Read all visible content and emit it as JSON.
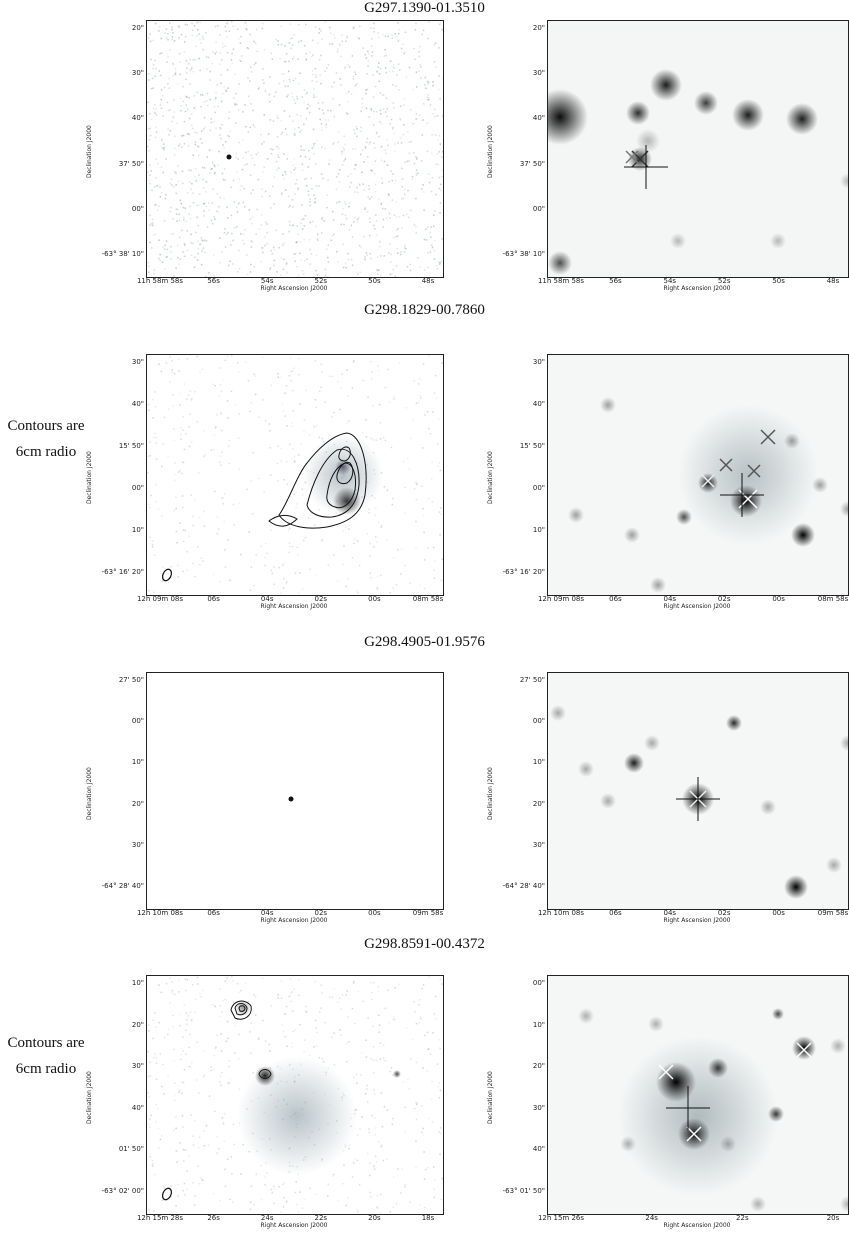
{
  "note": {
    "line1": "Contours are",
    "line2": "6cm radio"
  },
  "axis": {
    "x": "Right Ascension J2000",
    "y": "Declination J2000"
  },
  "sources": [
    {
      "title": "G297.1390-01.3510",
      "has_note": false,
      "xticks": [
        "11h 58m 58s",
        "56s",
        "54s",
        "52s",
        "50s",
        "48s"
      ],
      "yticks": [
        "20\"",
        "30\"",
        "40\"",
        "37' 50\"",
        "00\"",
        "-63° 38' 10\""
      ]
    },
    {
      "title": "G298.1829-00.7860",
      "has_note": true,
      "xticks": [
        "12h 09m 08s",
        "06s",
        "04s",
        "02s",
        "00s",
        "08m 58s"
      ],
      "yticks": [
        "30\"",
        "40\"",
        "15' 50\"",
        "00\"",
        "10\"",
        "-63° 16' 20\""
      ]
    },
    {
      "title": "G298.4905-01.9576",
      "has_note": false,
      "xticks": [
        "12h 10m 08s",
        "06s",
        "04s",
        "02s",
        "00s",
        "09m 58s"
      ],
      "yticks": [
        "27' 50\"",
        "00\"",
        "10\"",
        "20\"",
        "30\"",
        "-64° 28' 40\""
      ]
    },
    {
      "title": "G298.8591-00.4372",
      "has_note": true,
      "xticks": [
        "12h 15m 28s",
        "26s",
        "24s",
        "22s",
        "20s",
        "18s"
      ],
      "yticks": [
        "10\"",
        "20\"",
        "30\"",
        "40\"",
        "01' 50\"",
        "-63° 02' 00\""
      ]
    }
  ],
  "right_panels": [
    {
      "xticks": [
        "11h 58m 58s",
        "56s",
        "54s",
        "52s",
        "50s",
        "48s"
      ],
      "yticks": [
        "20\"",
        "30\"",
        "40\"",
        "37' 50\"",
        "00\"",
        "-63° 38' 10\""
      ]
    },
    {
      "xticks": [
        "12h 09m 08s",
        "06s",
        "04s",
        "02s",
        "00s",
        "08m 58s"
      ],
      "yticks": [
        "30\"",
        "40\"",
        "15' 50\"",
        "00\"",
        "10\"",
        "-63° 16' 20\""
      ]
    },
    {
      "xticks": [
        "12h 10m 08s",
        "06s",
        "04s",
        "02s",
        "00s",
        "09m 58s"
      ],
      "yticks": [
        "27' 50\"",
        "00\"",
        "10\"",
        "20\"",
        "30\"",
        "-64° 28' 40\""
      ]
    },
    {
      "xticks": [
        "12h 15m 26s",
        "24s",
        "22s",
        "20s"
      ],
      "yticks": [
        "00\"",
        "10\"",
        "20\"",
        "30\"",
        "40\"",
        "-63° 01' 50\""
      ]
    }
  ]
}
